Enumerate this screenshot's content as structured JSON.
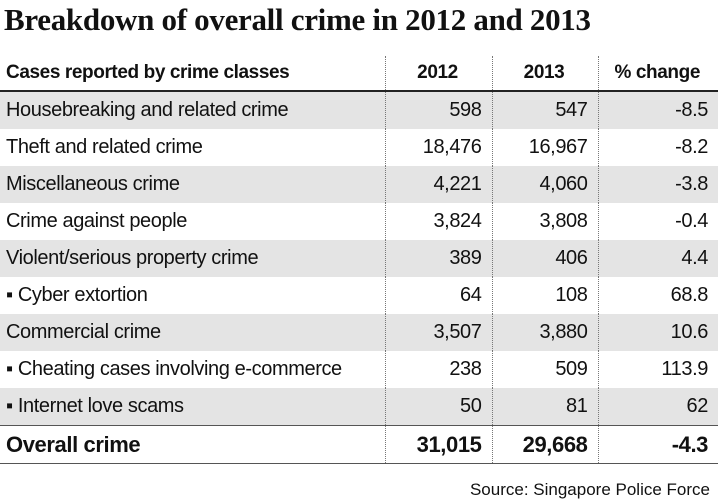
{
  "title": "Breakdown of overall crime in 2012 and 2013",
  "table": {
    "header": [
      "Cases reported by crime classes",
      "2012",
      "2013",
      "% change"
    ],
    "rows": [
      [
        "Housebreaking and related crime",
        "598",
        "547",
        "-8.5"
      ],
      [
        "Theft and related crime",
        "18,476",
        "16,967",
        "-8.2"
      ],
      [
        "Miscellaneous crime",
        "4,221",
        "4,060",
        "-3.8"
      ],
      [
        "Crime against people",
        "3,824",
        "3,808",
        "-0.4"
      ],
      [
        "Violent/serious property crime",
        "389",
        "406",
        "4.4"
      ],
      [
        "▪ Cyber extortion",
        "64",
        "108",
        "68.8"
      ],
      [
        "Commercial crime",
        "3,507",
        "3,880",
        "10.6"
      ],
      [
        "▪ Cheating cases involving e-commerce",
        "238",
        "509",
        "113.9"
      ],
      [
        "▪ Internet love scams",
        "50",
        "81",
        "62"
      ]
    ],
    "total": [
      "Overall crime",
      "31,015",
      "29,668",
      "-4.3"
    ]
  },
  "source": "Source: Singapore Police Force"
}
